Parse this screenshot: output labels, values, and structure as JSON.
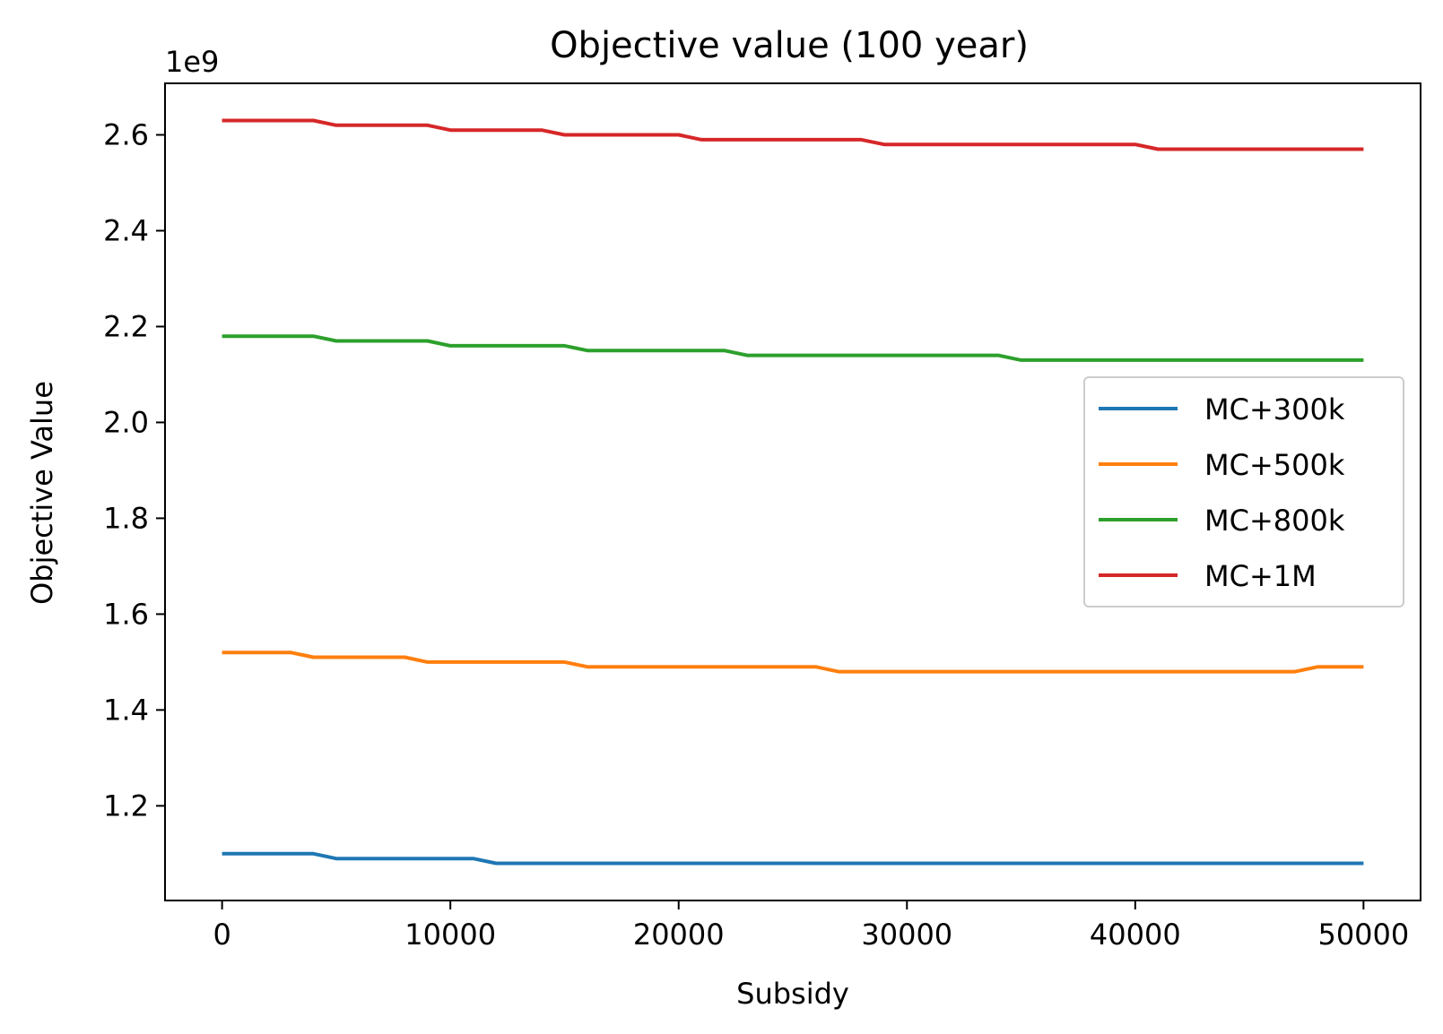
{
  "chart_data": {
    "type": "line",
    "title": "Objective value (100 year)",
    "xlabel": "Subsidy",
    "ylabel": "Objective Value",
    "y_offset_text": "1e9",
    "xlim": [
      -2500,
      52500
    ],
    "ylim": [
      1.0025,
      2.7075
    ],
    "xticks": [
      0,
      10000,
      20000,
      30000,
      40000,
      50000
    ],
    "xtick_labels": [
      "0",
      "10000",
      "20000",
      "30000",
      "40000",
      "50000"
    ],
    "yticks": [
      1.2,
      1.4,
      1.6,
      1.8,
      2.0,
      2.2,
      2.4,
      2.6
    ],
    "ytick_labels": [
      "1.2",
      "1.4",
      "1.6",
      "1.8",
      "2.0",
      "2.2",
      "2.4",
      "2.6"
    ],
    "grid": false,
    "legend_position": "center-right",
    "series": [
      {
        "name": "MC+300k",
        "color": "#1f77b4",
        "points": [
          [
            0,
            1.1
          ],
          [
            4000,
            1.1
          ],
          [
            5000,
            1.09
          ],
          [
            11000,
            1.09
          ],
          [
            12000,
            1.08
          ],
          [
            50000,
            1.08
          ]
        ]
      },
      {
        "name": "MC+500k",
        "color": "#ff7f0e",
        "points": [
          [
            0,
            1.52
          ],
          [
            3000,
            1.52
          ],
          [
            4000,
            1.51
          ],
          [
            8000,
            1.51
          ],
          [
            9000,
            1.5
          ],
          [
            15000,
            1.5
          ],
          [
            16000,
            1.49
          ],
          [
            26000,
            1.49
          ],
          [
            27000,
            1.48
          ],
          [
            47000,
            1.48
          ],
          [
            48000,
            1.49
          ],
          [
            50000,
            1.49
          ]
        ]
      },
      {
        "name": "MC+800k",
        "color": "#2ca02c",
        "points": [
          [
            0,
            2.18
          ],
          [
            4000,
            2.18
          ],
          [
            5000,
            2.17
          ],
          [
            9000,
            2.17
          ],
          [
            10000,
            2.16
          ],
          [
            15000,
            2.16
          ],
          [
            16000,
            2.15
          ],
          [
            22000,
            2.15
          ],
          [
            23000,
            2.14
          ],
          [
            34000,
            2.14
          ],
          [
            35000,
            2.13
          ],
          [
            50000,
            2.13
          ]
        ]
      },
      {
        "name": "MC+1M",
        "color": "#d62728",
        "points": [
          [
            0,
            2.63
          ],
          [
            4000,
            2.63
          ],
          [
            5000,
            2.62
          ],
          [
            9000,
            2.62
          ],
          [
            10000,
            2.61
          ],
          [
            14000,
            2.61
          ],
          [
            15000,
            2.6
          ],
          [
            20000,
            2.6
          ],
          [
            21000,
            2.59
          ],
          [
            28000,
            2.59
          ],
          [
            29000,
            2.58
          ],
          [
            40000,
            2.58
          ],
          [
            41000,
            2.57
          ],
          [
            50000,
            2.57
          ]
        ]
      }
    ]
  }
}
